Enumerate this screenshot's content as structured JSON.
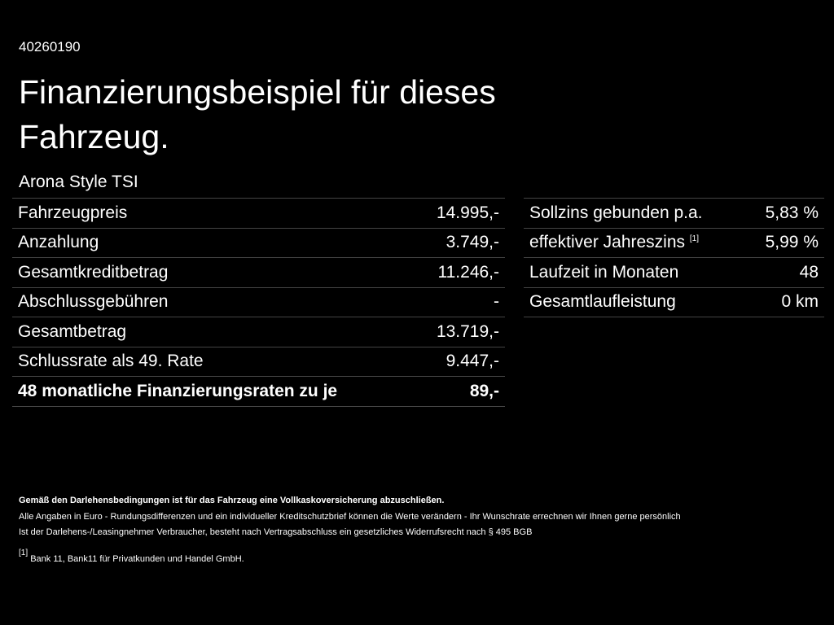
{
  "document_id": "40260190",
  "title": "Finanzierungsbeispiel für dieses Fahrzeug.",
  "model": "Arona Style TSI",
  "left_table": {
    "rows": [
      {
        "label": "Fahrzeugpreis",
        "value": "14.995,-"
      },
      {
        "label": "Anzahlung",
        "value": "3.749,-"
      },
      {
        "label": "Gesamtkreditbetrag",
        "value": "11.246,-"
      },
      {
        "label": "Abschlussgebühren",
        "value": "-"
      },
      {
        "label": "Gesamtbetrag",
        "value": "13.719,-"
      },
      {
        "label": "Schlussrate als 49. Rate",
        "value": "9.447,-"
      },
      {
        "label": "48 monatliche Finanzierungsraten zu je",
        "value": "89,-"
      }
    ]
  },
  "right_table": {
    "rows": [
      {
        "label": "Sollzins gebunden p.a.",
        "value": "5,83 %"
      },
      {
        "label": "effektiver Jahreszins",
        "ref": "[1]",
        "value": "5,99 %"
      },
      {
        "label": "Laufzeit in Monaten",
        "value": "48"
      },
      {
        "label": "Gesamtlaufleistung",
        "value": "0 km"
      }
    ]
  },
  "notes": [
    "Gemäß den Darlehensbedingungen ist für das Fahrzeug eine Vollkaskoversicherung abzuschließen.",
    "Alle Angaben in Euro - Rundungsdifferenzen und ein individueller Kreditschutzbrief können die Werte verändern - Ihr Wunschrate errechnen wir Ihnen gerne persönlich",
    "Ist der Darlehens-/Leasingnehmer Verbraucher, besteht nach Vertragsabschluss ein gesetzliches Widerrufsrecht nach § 495 BGB"
  ],
  "footnote": {
    "marker": "[1]",
    "text": "Bank 11, Bank11 für Privatkunden und Handel GmbH."
  }
}
